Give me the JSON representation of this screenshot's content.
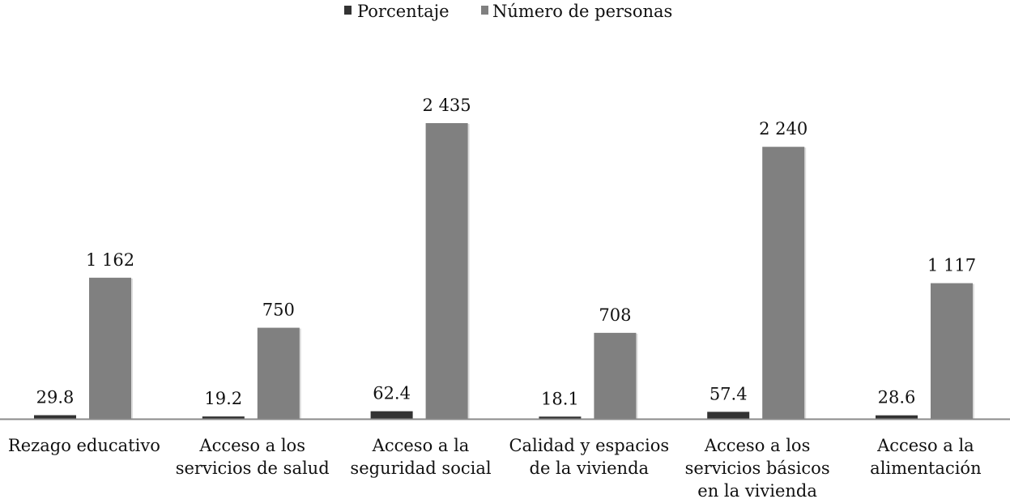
{
  "chart_data": {
    "type": "bar",
    "title": "",
    "xlabel": "",
    "ylabel": "",
    "categories": [
      [
        "Rezago educativo"
      ],
      [
        "Acceso a los",
        "servicios de salud"
      ],
      [
        "Acceso a la",
        "seguridad social"
      ],
      [
        "Calidad y espacios",
        "de la vivienda"
      ],
      [
        "Acceso a los",
        "servicios básicos",
        "en la vivienda"
      ],
      [
        "Acceso a la",
        "alimentación"
      ]
    ],
    "series": [
      {
        "name": "Porcentaje",
        "color": "#333333",
        "values": [
          29.8,
          19.2,
          62.4,
          18.1,
          57.4,
          28.6
        ],
        "labels": [
          "29.8",
          "19.2",
          "62.4",
          "18.1",
          "57.4",
          "28.6"
        ]
      },
      {
        "name": "Número de personas",
        "color": "#808080",
        "values": [
          1162,
          750,
          2435,
          708,
          2240,
          1117
        ],
        "labels": [
          "1 162",
          "750",
          "2 435",
          "708",
          "2 240",
          "1 117"
        ]
      }
    ],
    "ylim": [
      0,
      2435
    ],
    "grid": false,
    "legend": "top-center"
  }
}
